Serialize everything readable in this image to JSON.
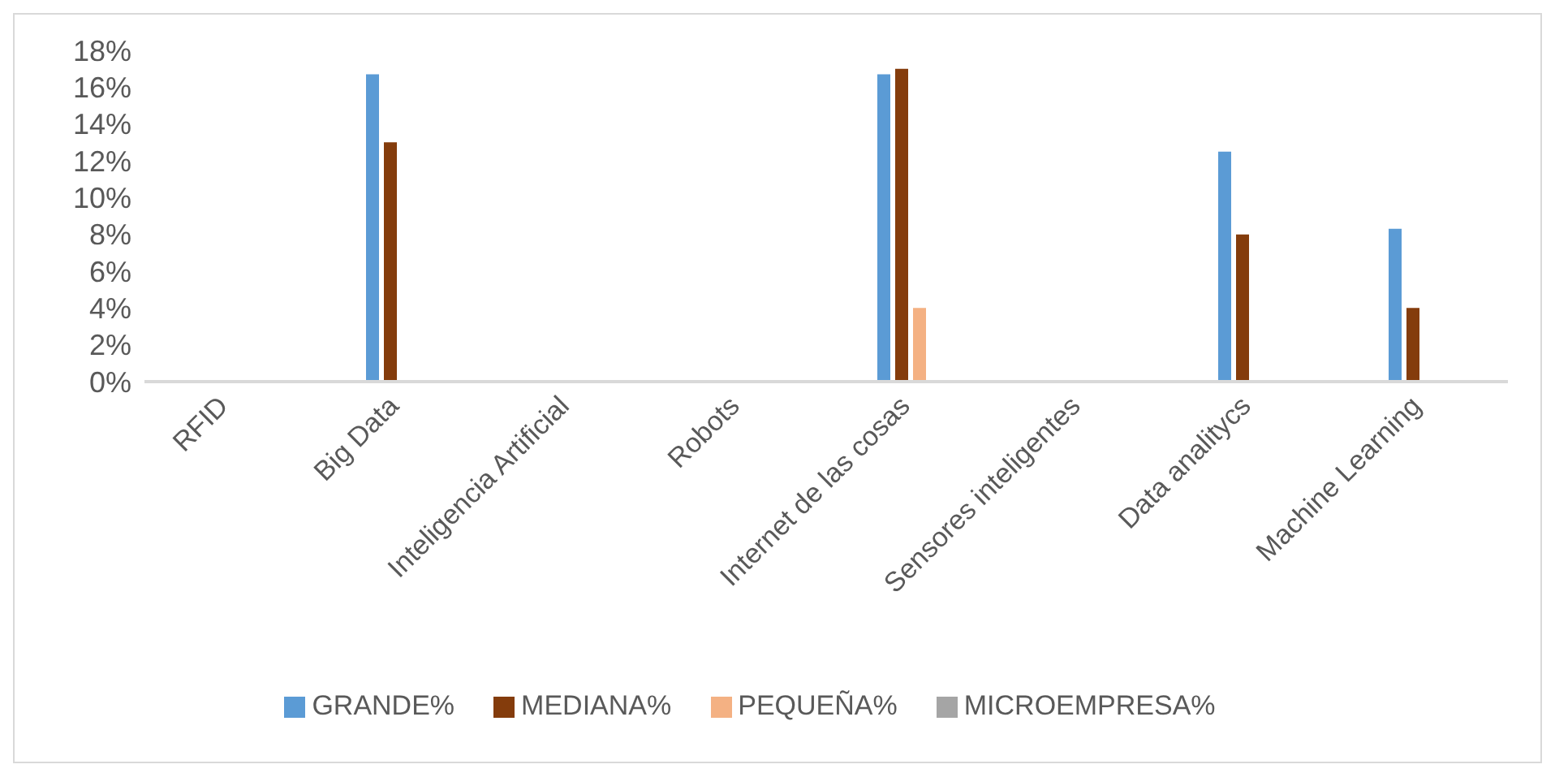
{
  "chart_data": {
    "type": "bar",
    "categories": [
      "RFID",
      "Big Data",
      "Inteligencia Artificial",
      "Robots",
      "Internet de las cosas",
      "Sensores inteligentes",
      "Data analitycs",
      "Machine Learning"
    ],
    "series": [
      {
        "name": "GRANDE%",
        "color": "#5b9bd5",
        "values": [
          0,
          16.7,
          0,
          0,
          16.7,
          0,
          12.5,
          8.3
        ]
      },
      {
        "name": "MEDIANA%",
        "color": "#843c0c",
        "values": [
          0,
          13,
          0,
          0,
          17,
          0,
          8,
          4
        ]
      },
      {
        "name": "PEQUEÑA%",
        "color": "#f4b183",
        "values": [
          0,
          0,
          0,
          0,
          4,
          0,
          0,
          0
        ]
      },
      {
        "name": "MICROEMPRESA%",
        "color": "#a5a5a5",
        "values": [
          0,
          0,
          0,
          0,
          0,
          0,
          0,
          0
        ]
      }
    ],
    "ylim": [
      0,
      18
    ],
    "yticks": [
      {
        "value": 0,
        "label": "0%"
      },
      {
        "value": 2,
        "label": "2%"
      },
      {
        "value": 4,
        "label": "4%"
      },
      {
        "value": 6,
        "label": "6%"
      },
      {
        "value": 8,
        "label": "8%"
      },
      {
        "value": 10,
        "label": "10%"
      },
      {
        "value": 12,
        "label": "12%"
      },
      {
        "value": 14,
        "label": "14%"
      },
      {
        "value": 16,
        "label": "16%"
      },
      {
        "value": 18,
        "label": "18%"
      }
    ],
    "grid": false,
    "legend": "bottom"
  }
}
